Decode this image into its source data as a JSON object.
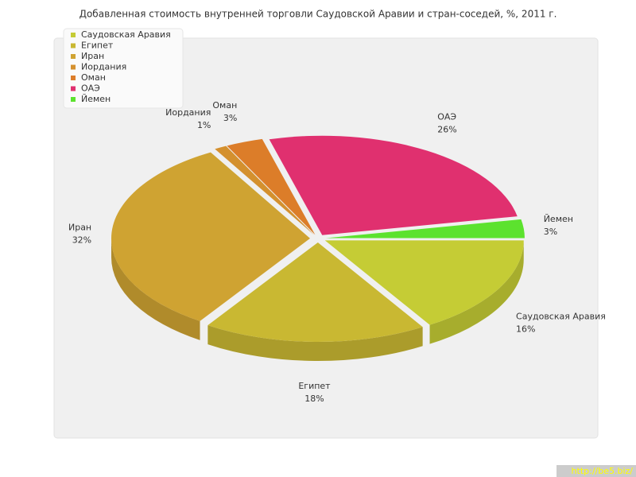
{
  "chart_data": {
    "type": "pie",
    "title": "Добавленная стоимость внутренней торговли Саудовской Аравии и стран-соседей, %, 2011 г.",
    "categories": [
      "Саудовская Аравия",
      "Египет",
      "Иран",
      "Иордания",
      "Оман",
      "ОАЭ",
      "Йемен"
    ],
    "values": [
      16,
      18,
      32,
      1,
      3,
      26,
      3
    ],
    "value_labels": [
      "16%",
      "18%",
      "32%",
      "1%",
      "3%",
      "26%",
      "3%"
    ],
    "colors": [
      "#c5cc35",
      "#c9b832",
      "#cfa332",
      "#d4902e",
      "#dc7d29",
      "#e0306f",
      "#5ce22e"
    ],
    "legend": "top-left",
    "watermark": "http://be5.biz/"
  }
}
